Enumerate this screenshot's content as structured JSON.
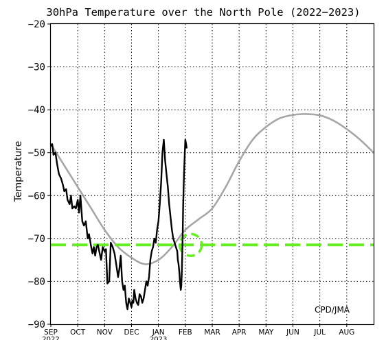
{
  "chart_data": {
    "type": "line",
    "title": "30hPa Temperature over the North Pole (2022−2023)",
    "ylabel": "Temperature",
    "xlabel": "",
    "ylim": [
      -90,
      -20
    ],
    "yticks": [
      -20,
      -30,
      -40,
      -50,
      -60,
      -70,
      -80,
      -90
    ],
    "ytick_labels": [
      "−20",
      "−30",
      "−40",
      "−50",
      "−60",
      "−70",
      "−80",
      "−90"
    ],
    "months": [
      "SEP",
      "OCT",
      "NOV",
      "DEC",
      "JAN",
      "FEB",
      "MAR",
      "APR",
      "MAY",
      "JUN",
      "JUL",
      "AUG"
    ],
    "year_labels": [
      {
        "month": "SEP",
        "text": "2022"
      },
      {
        "month": "JAN",
        "text": "2023"
      }
    ],
    "grid": true,
    "credit": "CPD/JMA",
    "colors": {
      "observed": "#000000",
      "climatology": "#a6a6a6",
      "threshold": "#66ee22"
    },
    "series": [
      {
        "role": "climatology",
        "color": "#a6a6a6",
        "x_month": [
          0,
          0.5,
          1,
          1.5,
          2,
          2.5,
          3,
          3.5,
          4,
          4.5,
          5,
          5.5,
          6,
          6.5,
          7,
          7.5,
          8,
          8.5,
          9,
          9.5,
          10,
          10.5,
          11,
          11.5,
          12
        ],
        "values": [
          -48,
          -53,
          -58,
          -63,
          -68,
          -72,
          -74.5,
          -76,
          -75,
          -72,
          -68,
          -65.5,
          -63,
          -58,
          -52,
          -47,
          -44,
          -42,
          -41.2,
          -41,
          -41.3,
          -42.5,
          -44.5,
          -47,
          -50
        ]
      },
      {
        "role": "observed",
        "color": "#000000",
        "x_month": [
          0,
          0.05,
          0.1,
          0.17,
          0.23,
          0.3,
          0.38,
          0.45,
          0.5,
          0.57,
          0.62,
          0.7,
          0.75,
          0.8,
          0.87,
          0.93,
          1.0,
          1.05,
          1.1,
          1.17,
          1.23,
          1.3,
          1.37,
          1.42,
          1.5,
          1.55,
          1.6,
          1.65,
          1.7,
          1.75,
          1.8,
          1.87,
          1.93,
          2.0,
          2.05,
          2.1,
          2.17,
          2.23,
          2.3,
          2.37,
          2.43,
          2.5,
          2.55,
          2.6,
          2.65,
          2.7,
          2.75,
          2.8,
          2.85,
          2.9,
          2.95,
          3.0,
          3.03,
          3.07,
          3.1,
          3.15,
          3.2,
          3.25,
          3.3,
          3.35,
          3.4,
          3.45,
          3.5,
          3.55,
          3.6,
          3.65,
          3.7,
          3.75,
          3.8,
          3.85,
          3.9,
          3.95,
          4.0,
          4.05,
          4.1,
          4.15,
          4.2,
          4.25,
          4.3,
          4.35,
          4.4,
          4.45,
          4.5,
          4.55,
          4.6,
          4.65,
          4.7,
          4.72,
          4.75,
          4.78,
          4.8,
          4.83,
          4.85,
          4.87,
          4.9,
          4.92,
          4.95,
          4.98,
          5.0,
          5.03,
          5.05
        ],
        "values": [
          -48.5,
          -48,
          -50.5,
          -50,
          -52.5,
          -55,
          -56,
          -57.5,
          -59,
          -58.5,
          -61,
          -62,
          -60,
          -63,
          -62.5,
          -63,
          -61,
          -64,
          -60,
          -66,
          -67,
          -66,
          -70,
          -69,
          -72,
          -73.5,
          -72,
          -74,
          -72,
          -71.5,
          -73,
          -75,
          -72,
          -73,
          -72.5,
          -80.5,
          -80,
          -71,
          -72,
          -73.5,
          -76,
          -79,
          -77,
          -74,
          -80,
          -82,
          -81,
          -85,
          -86.5,
          -84,
          -85,
          -86,
          -84.5,
          -85,
          -82,
          -84,
          -85,
          -85.5,
          -83,
          -83.5,
          -85,
          -84,
          -82,
          -80,
          -81,
          -79,
          -75,
          -73,
          -72,
          -70,
          -71,
          -68,
          -66,
          -62,
          -57,
          -50,
          -47,
          -52,
          -55,
          -58,
          -62,
          -65,
          -68,
          -70,
          -71,
          -72,
          -73,
          -75,
          -76,
          -78,
          -80,
          -82,
          -81,
          -78,
          -70,
          -62,
          -55,
          -50,
          -47,
          -48,
          -49
        ]
      },
      {
        "role": "threshold",
        "color": "#66ee22",
        "x_month": [
          0,
          12
        ],
        "values": [
          -71.5,
          -71.5
        ]
      }
    ]
  }
}
